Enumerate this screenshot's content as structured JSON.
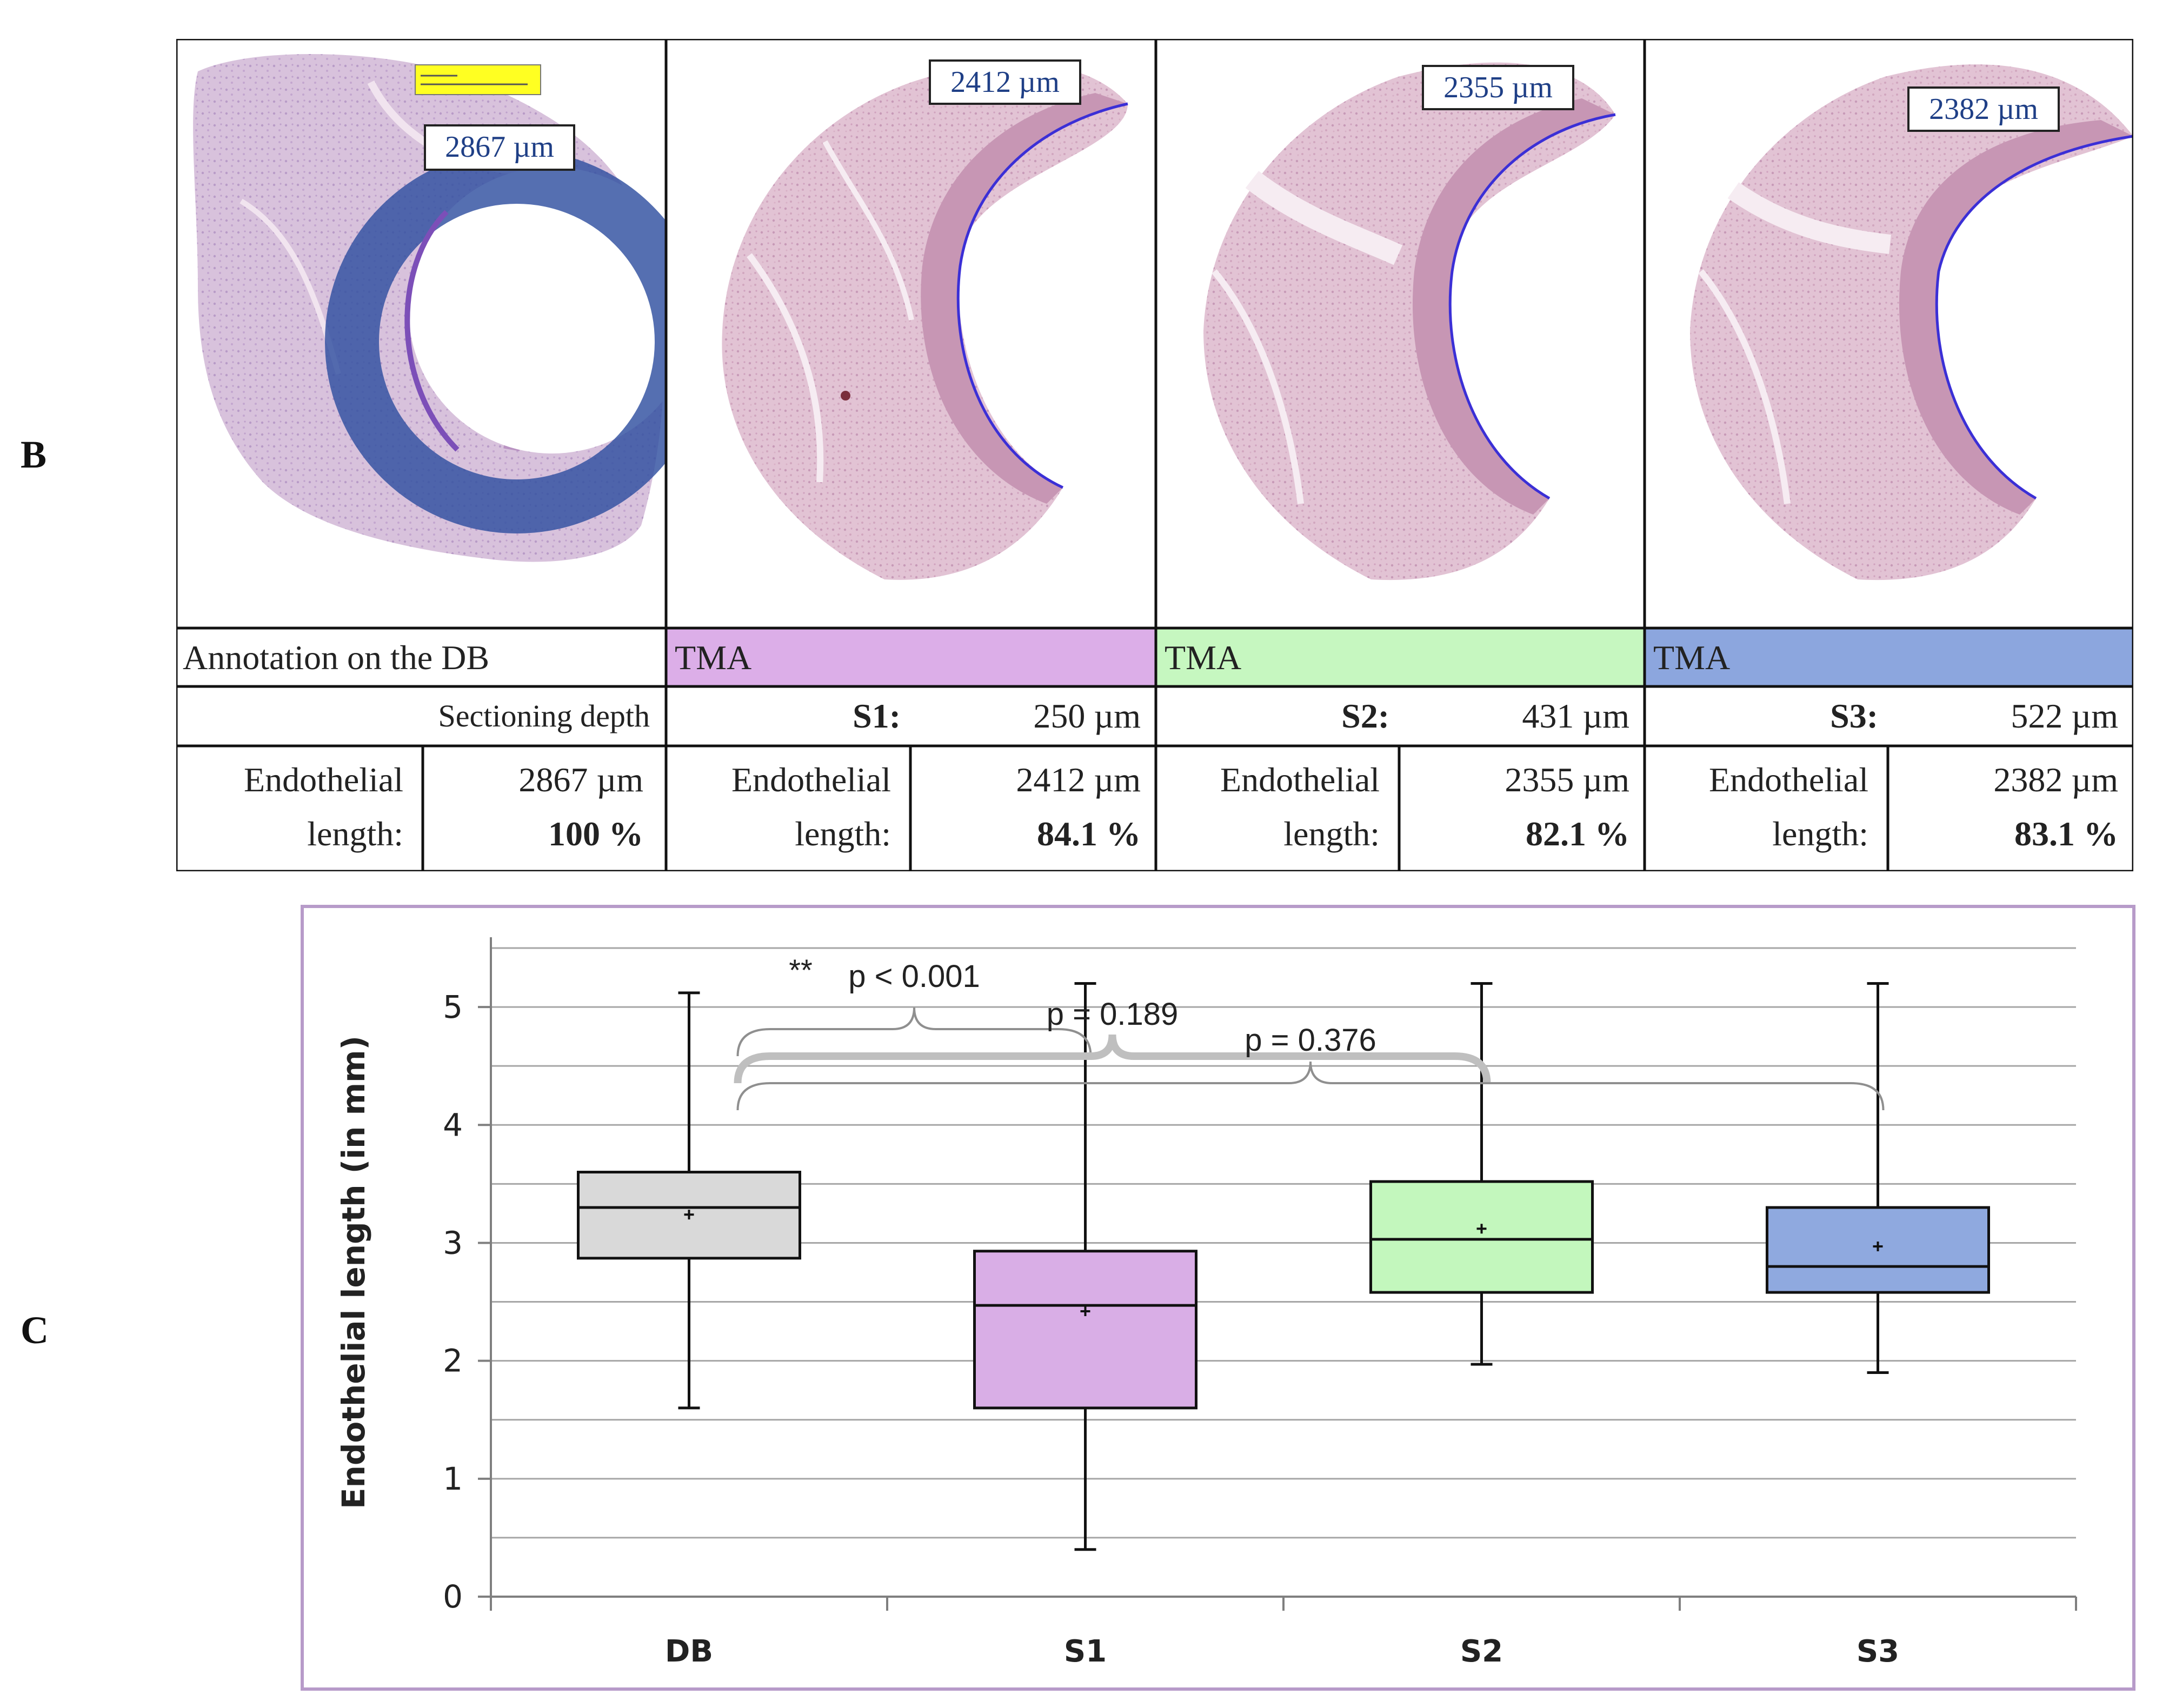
{
  "panel_b_letter": "B",
  "panel_c_letter": "C",
  "panel_b": {
    "images": [
      {
        "measure": "2867 µm",
        "overlay_color": "#2f4fa0"
      },
      {
        "measure": "2412 µm"
      },
      {
        "measure": "2355 µm"
      },
      {
        "measure": "2382 µm"
      }
    ],
    "table": {
      "row1": [
        {
          "text": "Annotation on the DB",
          "fill": "#ffffff"
        },
        {
          "text": "TMA",
          "fill": "#dcaee8"
        },
        {
          "text": "TMA",
          "fill": "#c6f7c0"
        },
        {
          "text": "TMA",
          "fill": "#8ca6de"
        }
      ],
      "row2": {
        "db_label": "Sectioning depth",
        "sections": [
          {
            "name": "S1:",
            "depth": "250 µm"
          },
          {
            "name": "S2:",
            "depth": "431 µm"
          },
          {
            "name": "S3:",
            "depth": "522 µm"
          }
        ]
      },
      "row3": [
        {
          "label1": "Endothelial",
          "label2": "length:",
          "value": "2867 µm",
          "percent": "100 %"
        },
        {
          "label1": "Endothelial",
          "label2": "length:",
          "value": "2412 µm",
          "percent": "84.1 %"
        },
        {
          "label1": "Endothelial",
          "label2": "length:",
          "value": "2355 µm",
          "percent": "82.1 %"
        },
        {
          "label1": "Endothelial",
          "label2": "length:",
          "value": "2382 µm",
          "percent": "83.1 %"
        }
      ]
    }
  },
  "chart_data": {
    "type": "box",
    "title": "",
    "xlabel": "",
    "ylabel": "Endothelial length (in mm)",
    "ylim": [
      0,
      5.5
    ],
    "yticks": [
      0,
      1,
      2,
      3,
      4,
      5
    ],
    "grid": true,
    "categories": [
      "DB",
      "S1",
      "S2",
      "S3"
    ],
    "boxes": [
      {
        "name": "DB",
        "min": 1.6,
        "q1": 2.87,
        "median": 3.3,
        "q3": 3.6,
        "max": 5.12,
        "mean": 3.24,
        "color": "#d9d9d9"
      },
      {
        "name": "S1",
        "min": 0.4,
        "q1": 1.6,
        "median": 2.47,
        "q3": 2.93,
        "max": 5.2,
        "mean": 2.42,
        "color": "#d9aee6"
      },
      {
        "name": "S2",
        "min": 1.97,
        "q1": 2.58,
        "median": 3.03,
        "q3": 3.52,
        "max": 5.2,
        "mean": 3.12,
        "color": "#c3f7bd"
      },
      {
        "name": "S3",
        "min": 1.9,
        "q1": 2.58,
        "median": 2.8,
        "q3": 3.3,
        "max": 5.2,
        "mean": 2.97,
        "color": "#8fa9df"
      }
    ],
    "annotations": [
      {
        "text": "p < 0.001",
        "stars": "**",
        "from": "DB",
        "to": "S1"
      },
      {
        "text": "p = 0.189",
        "from": "DB",
        "to": "S2"
      },
      {
        "text": "p = 0.376",
        "from": "DB",
        "to": "S3"
      }
    ]
  }
}
